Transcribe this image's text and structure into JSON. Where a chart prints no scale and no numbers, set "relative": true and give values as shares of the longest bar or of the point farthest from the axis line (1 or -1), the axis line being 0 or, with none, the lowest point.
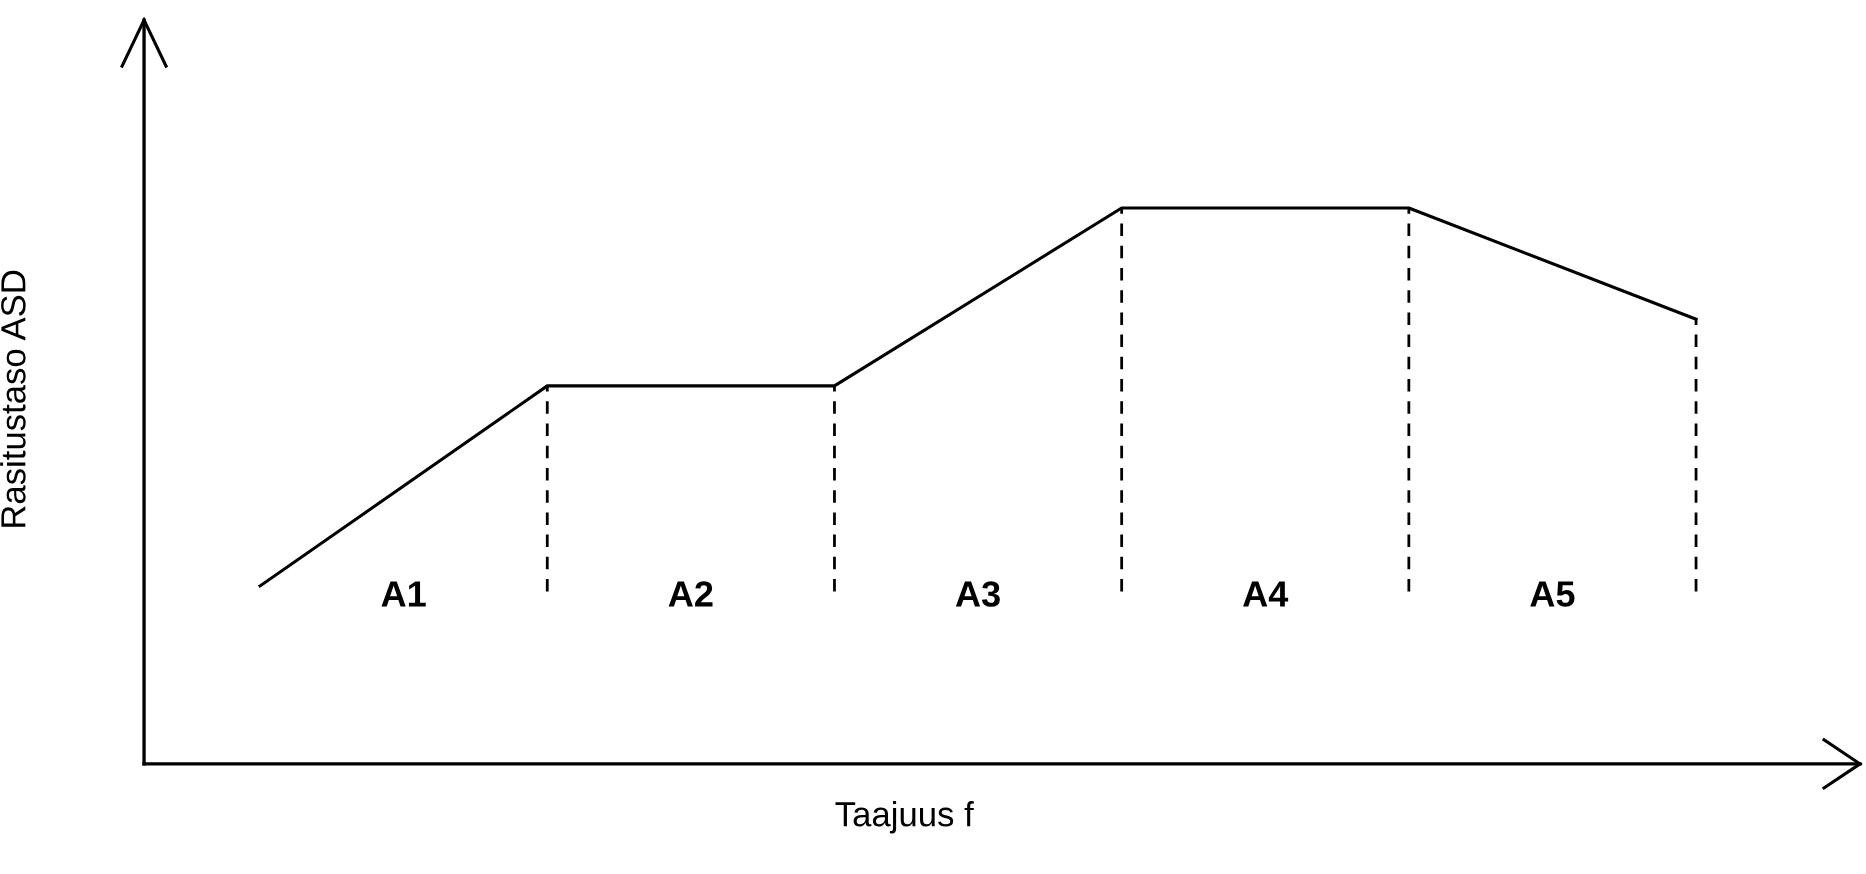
{
  "chart_data": {
    "type": "line",
    "relative": true,
    "xlabel": "Taajuus f",
    "ylabel": "Rasitustaso ASD",
    "categories": [
      null,
      null,
      null,
      null,
      null,
      null
    ],
    "series": [
      {
        "color": "#000000",
        "values": [
          0.32,
          0.68,
          0.68,
          1.0,
          1.0,
          0.8
        ]
      }
    ],
    "annotations": [
      "A1",
      "A2",
      "A3",
      "A4",
      "A5"
    ]
  }
}
